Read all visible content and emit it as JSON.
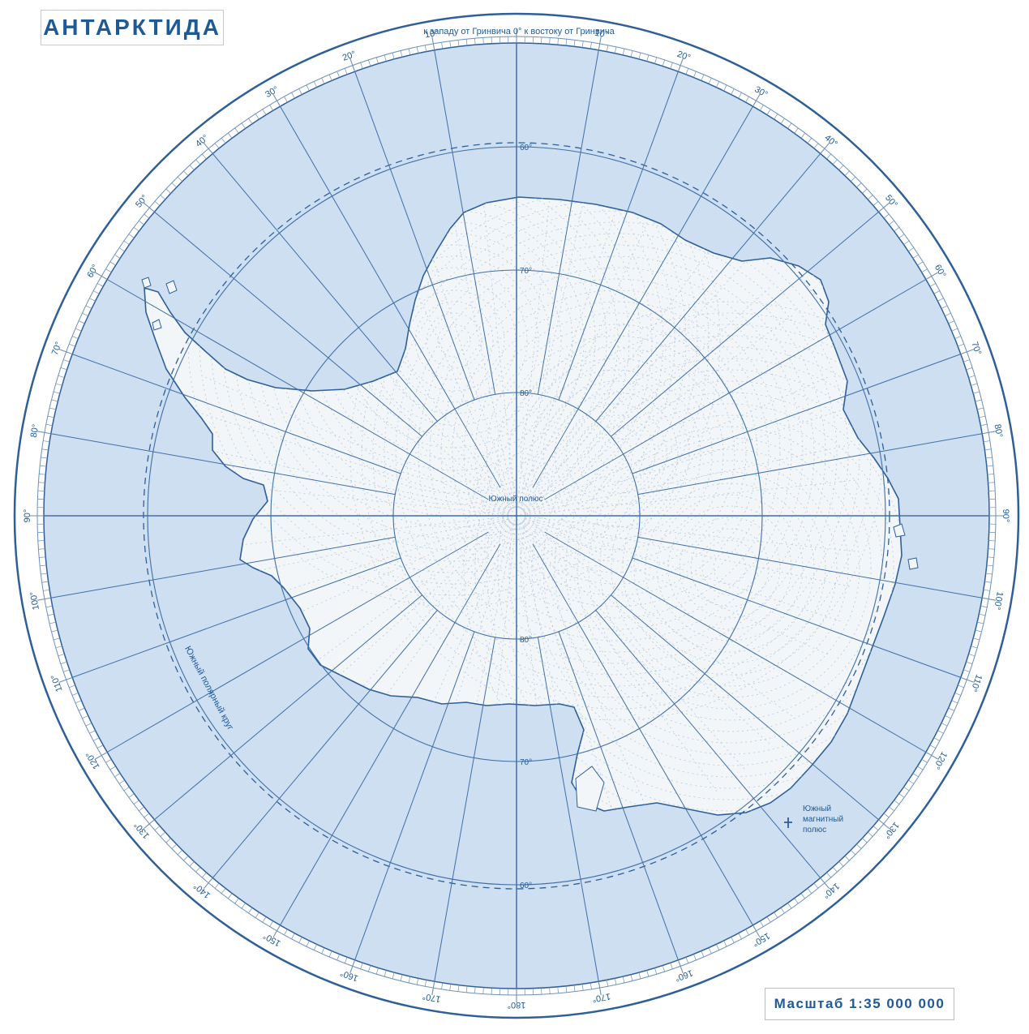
{
  "title": "АНТАРКТИДА",
  "scale": "Масштаб 1:35 000 000",
  "top_caption": "к западу от Гринвича 0° к востоку от Гринвича",
  "pole_label": "Южный полюс",
  "polar_circle_label": "Южный полярный круг",
  "magnetic_pole_label": [
    "Южный",
    "магнитный",
    "полюс"
  ],
  "latitude_labels": [
    "60°",
    "70°",
    "80°"
  ],
  "longitude_labels": [
    {
      "lon": 10,
      "text": "10°"
    },
    {
      "lon": 20,
      "text": "20°"
    },
    {
      "lon": 30,
      "text": "30°"
    },
    {
      "lon": 40,
      "text": "40°"
    },
    {
      "lon": 50,
      "text": "50°"
    },
    {
      "lon": 60,
      "text": "60°"
    },
    {
      "lon": 70,
      "text": "70°"
    },
    {
      "lon": 80,
      "text": "80°"
    },
    {
      "lon": 90,
      "text": "90°"
    },
    {
      "lon": 100,
      "text": "100°"
    },
    {
      "lon": 110,
      "text": "110°"
    },
    {
      "lon": 120,
      "text": "120°"
    },
    {
      "lon": 130,
      "text": "130°"
    },
    {
      "lon": 140,
      "text": "140°"
    },
    {
      "lon": 150,
      "text": "150°"
    },
    {
      "lon": 160,
      "text": "160°"
    },
    {
      "lon": 170,
      "text": "170°"
    },
    {
      "lon": 180,
      "text": "180°"
    },
    {
      "lon": -10,
      "text": "10°"
    },
    {
      "lon": -20,
      "text": "20°"
    },
    {
      "lon": -30,
      "text": "30°"
    },
    {
      "lon": -40,
      "text": "40°"
    },
    {
      "lon": -50,
      "text": "50°"
    },
    {
      "lon": -60,
      "text": "60°"
    },
    {
      "lon": -70,
      "text": "70°"
    },
    {
      "lon": -80,
      "text": "80°"
    },
    {
      "lon": -90,
      "text": "90°"
    },
    {
      "lon": -100,
      "text": "100°"
    },
    {
      "lon": -110,
      "text": "110°"
    },
    {
      "lon": -120,
      "text": "120°"
    },
    {
      "lon": -130,
      "text": "130°"
    },
    {
      "lon": -140,
      "text": "140°"
    },
    {
      "lon": -150,
      "text": "150°"
    },
    {
      "lon": -160,
      "text": "160°"
    },
    {
      "lon": -170,
      "text": "170°"
    }
  ],
  "colors": {
    "ocean": "#cddff1",
    "land": "#f3f6f8",
    "grid": "#3f6fa8",
    "outline": "#2e5f99",
    "text": "#1f5a96"
  }
}
